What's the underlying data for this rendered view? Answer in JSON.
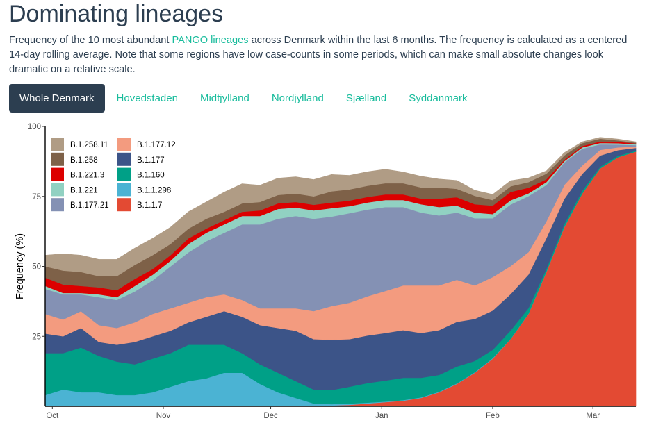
{
  "page": {
    "title": "Dominating lineages",
    "description": {
      "before": "Frequency of the 10 most abundant ",
      "link": "PANGO lineages",
      "after": " across Denmark within the last 6 months. The frequency is calculated as a centered 14-day rolling average. Note that some regions have low case-counts in some periods, which can make small absolute changes look dramatic on a relative scale."
    },
    "tabs": [
      "Whole Denmark",
      "Hovedstaden",
      "Midtjylland",
      "Nordjylland",
      "Sjælland",
      "Syddanmark"
    ],
    "active_tab": 0
  },
  "chart_data": {
    "type": "area",
    "stacked": true,
    "ylabel": "Frequency (%)",
    "xlabel": "",
    "ylim": [
      0,
      100
    ],
    "yticks": [
      25,
      50,
      75,
      100
    ],
    "xticks": [
      {
        "label": "Oct",
        "day": 2
      },
      {
        "label": "Nov",
        "day": 33
      },
      {
        "label": "Dec",
        "day": 63
      },
      {
        "label": "Jan",
        "day": 94
      },
      {
        "label": "Feb",
        "day": 125
      },
      {
        "label": "Mar",
        "day": 153
      }
    ],
    "x_unit": "day number since 2020-09-30 (Oct 1 = day 1)",
    "x": [
      0,
      5,
      10,
      15,
      20,
      25,
      30,
      35,
      40,
      45,
      50,
      55,
      60,
      65,
      70,
      75,
      80,
      85,
      90,
      95,
      100,
      105,
      110,
      115,
      120,
      125,
      130,
      135,
      140,
      145,
      150,
      155,
      160,
      165
    ],
    "legend": {
      "position": "top-left",
      "columns": 2
    },
    "series": [
      {
        "name": "B.1.1.7",
        "color": "#e34a33",
        "values": [
          0,
          0,
          0,
          0,
          0,
          0,
          0,
          0,
          0,
          0,
          0,
          0,
          0,
          0,
          0,
          0,
          0.3,
          0.5,
          1,
          1.5,
          2,
          3,
          5,
          8,
          12,
          17,
          24,
          33,
          48,
          64,
          76,
          85,
          89,
          91
        ]
      },
      {
        "name": "B.1.1.298",
        "color": "#4bb3d3",
        "values": [
          4,
          6,
          5,
          5,
          4,
          4,
          5,
          7,
          9,
          10,
          12,
          12,
          8,
          5,
          3,
          1,
          0.5,
          0.5,
          0.3,
          0.2,
          0.2,
          0.2,
          0.2,
          0.2,
          0.2,
          0.2,
          0.1,
          0.1,
          0.1,
          0.1,
          0,
          0,
          0,
          0
        ]
      },
      {
        "name": "B.1.160",
        "color": "#00a087",
        "values": [
          15,
          13,
          16,
          13,
          12,
          11,
          12,
          12,
          13,
          12,
          10,
          7,
          7,
          7,
          6,
          5,
          5,
          6,
          7,
          7.5,
          8,
          7,
          6,
          6,
          4,
          3,
          3,
          2,
          1,
          1,
          1,
          0.6,
          0.5,
          0.3
        ]
      },
      {
        "name": "B.1.177",
        "color": "#3c5488",
        "values": [
          7,
          6,
          7,
          5,
          6,
          8,
          8,
          8,
          8,
          10,
          12,
          13,
          14,
          16,
          18,
          18,
          18,
          17,
          17,
          17,
          17,
          16,
          16,
          16,
          15,
          14,
          13,
          12,
          11,
          9,
          6,
          4,
          2,
          1
        ]
      },
      {
        "name": "B.1.177.12",
        "color": "#f39b7f",
        "values": [
          7,
          6,
          6,
          6,
          6,
          7,
          8,
          8,
          7,
          7,
          6,
          6,
          6,
          7,
          8,
          10,
          12,
          13,
          14,
          15,
          16,
          17,
          16,
          15,
          12,
          12,
          10,
          8,
          6,
          5,
          3,
          2,
          1,
          0.5
        ]
      },
      {
        "name": "B.1.177.21",
        "color": "#8491b4",
        "values": [
          9,
          9,
          6,
          10,
          10,
          11,
          12,
          15,
          18,
          20,
          22,
          27,
          30,
          32,
          33,
          33,
          32,
          32,
          31,
          30,
          28,
          26,
          25,
          24,
          24,
          21,
          22,
          20,
          13,
          8,
          6,
          2,
          1,
          0.5
        ]
      },
      {
        "name": "B.1.221",
        "color": "#91d1c2",
        "values": [
          1,
          0.5,
          0.5,
          1,
          1,
          2,
          2,
          2,
          3,
          3,
          3,
          3,
          3,
          3.5,
          3,
          3,
          3,
          2.5,
          2.5,
          2.5,
          2.5,
          3,
          3,
          2.5,
          2,
          1.5,
          1.5,
          1,
          1,
          0.5,
          0.5,
          0.5,
          0.5,
          0.3
        ]
      },
      {
        "name": "B.1.221.3",
        "color": "#dc0000",
        "values": [
          3,
          3,
          2.5,
          2.5,
          2.5,
          2.5,
          2,
          2,
          2,
          1.5,
          1.5,
          1.5,
          2,
          2,
          2,
          2,
          2,
          2,
          2,
          2,
          2,
          2,
          3,
          3,
          3,
          3,
          3,
          2,
          1,
          0.5,
          0.5,
          0.5,
          0.5,
          0.3
        ]
      },
      {
        "name": "B.1.258",
        "color": "#7e6148",
        "values": [
          4,
          5,
          5,
          4,
          5,
          5,
          5,
          4,
          3.5,
          3.5,
          3,
          3,
          3,
          3,
          3,
          3,
          4,
          4,
          4,
          4,
          4,
          4,
          4,
          3,
          3,
          2,
          2,
          2,
          2,
          1.5,
          1,
          1,
          0.5,
          0.3
        ]
      },
      {
        "name": "B.1.258.11",
        "color": "#b09c85",
        "values": [
          4,
          6,
          6,
          6,
          6,
          6,
          6,
          6,
          6,
          6,
          7,
          7,
          6,
          6,
          6,
          6,
          6,
          5,
          5,
          5,
          4,
          4,
          3,
          3,
          2,
          2,
          2,
          1.5,
          1,
          1,
          0.5,
          0.5,
          0.5,
          0.3
        ]
      }
    ]
  }
}
